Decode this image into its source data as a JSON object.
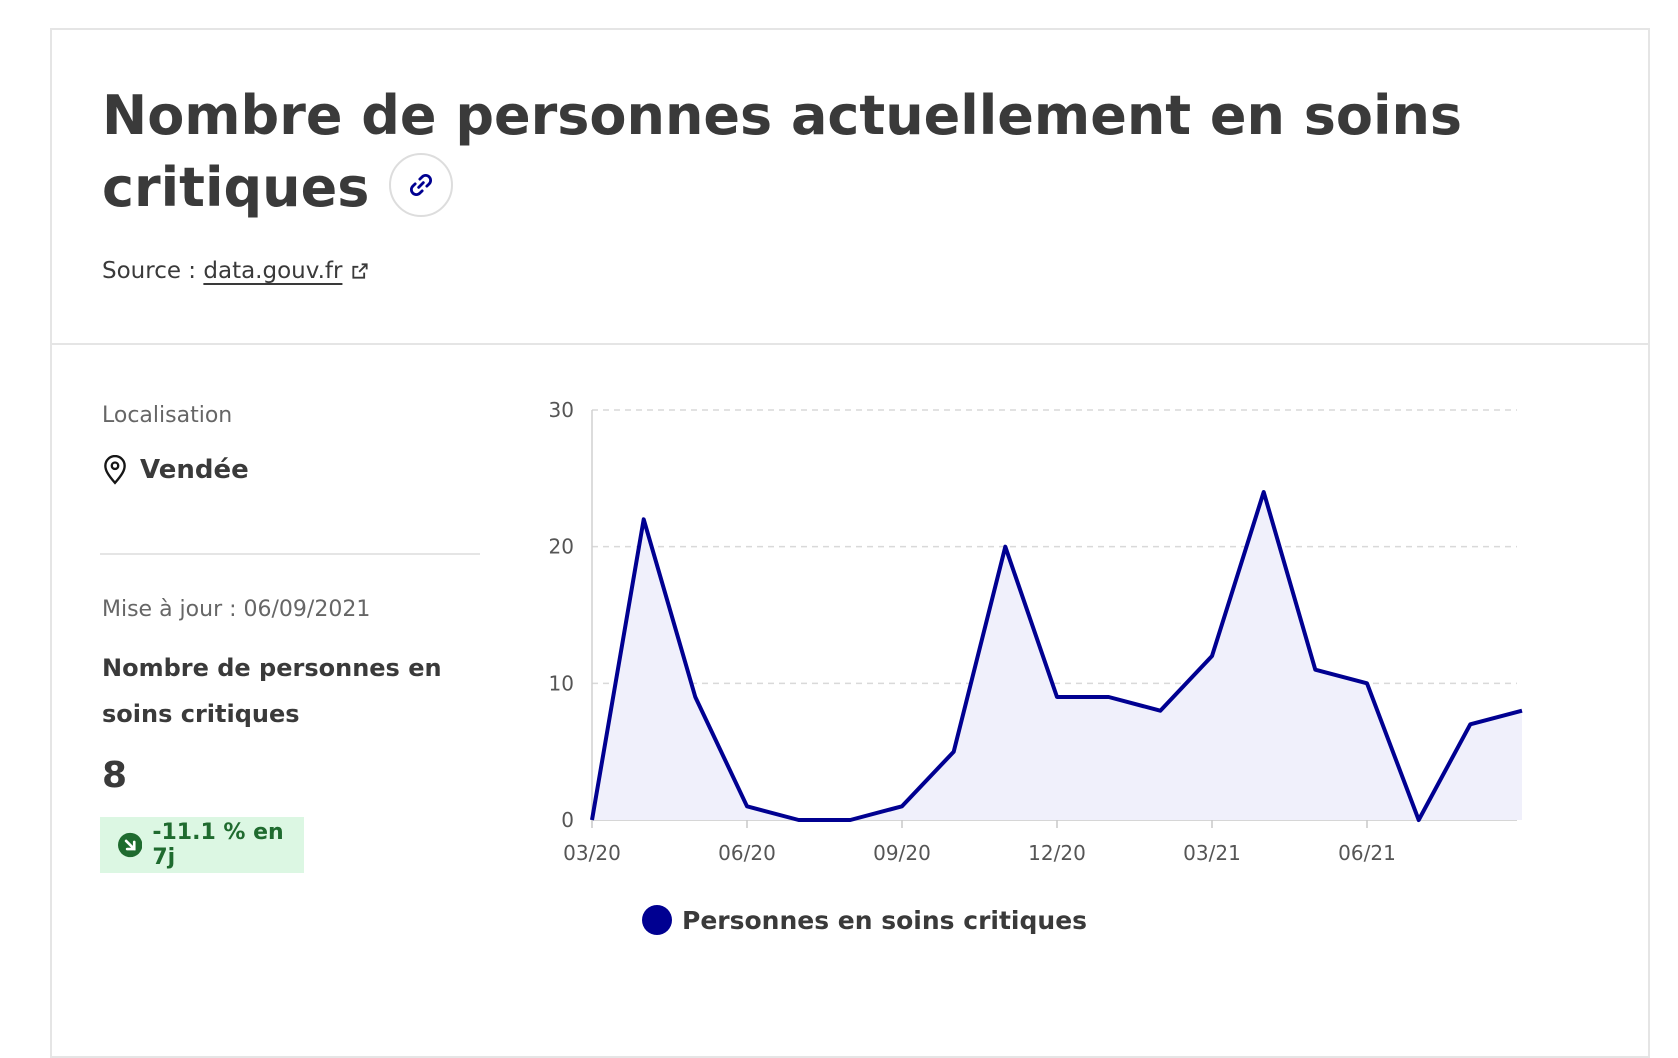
{
  "header": {
    "title": "Nombre de personnes actuellement en soins critiques",
    "source_prefix": "Source : ",
    "source_link": "data.gouv.fr"
  },
  "side": {
    "location_label": "Localisation",
    "location_value": "Vendée",
    "update_label": "Mise à jour : 06/09/2021",
    "indicator_name": "Nombre de personnes en soins critiques",
    "indicator_value": "8",
    "trend": "-11.1 % en 7j"
  },
  "colors": {
    "series": "#000091",
    "area": "#f0f0fb",
    "badge_bg": "#dcf7e3",
    "badge_text": "#1f6b2f"
  },
  "icons": {
    "link": "link-icon",
    "external": "external-link-icon",
    "location": "map-pin-icon",
    "trend": "arrow-down-right-icon"
  },
  "chart_data": {
    "type": "line",
    "title": "",
    "xlabel": "",
    "ylabel": "",
    "ylim": [
      0,
      30
    ],
    "yticks": [
      0,
      10,
      20,
      30
    ],
    "xticks": [
      "03/20",
      "06/20",
      "09/20",
      "12/20",
      "03/21",
      "06/21"
    ],
    "grid": true,
    "legend": "bottom",
    "series": [
      {
        "name": "Personnes en soins critiques",
        "x": [
          "03/20",
          "04/20",
          "05/20",
          "06/20",
          "07/20",
          "08/20",
          "09/20",
          "10/20",
          "11/20",
          "12/20",
          "01/21",
          "02/21",
          "03/21",
          "04/21",
          "05/21",
          "06/21",
          "07/21",
          "08/21",
          "09/21"
        ],
        "values": [
          0,
          22,
          9,
          1,
          0,
          0,
          1,
          5,
          20,
          9,
          9,
          8,
          12,
          24,
          11,
          10,
          0,
          7,
          8
        ]
      }
    ]
  }
}
